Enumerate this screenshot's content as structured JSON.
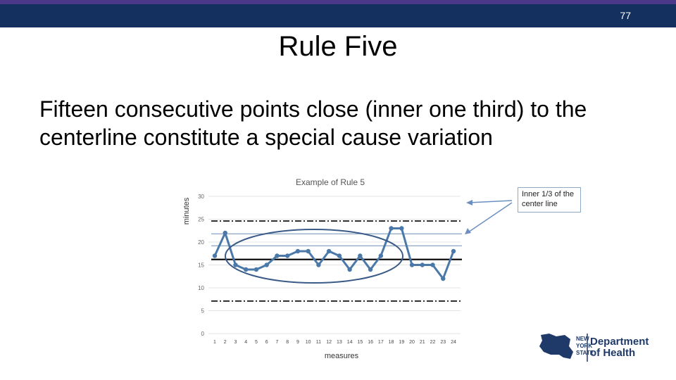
{
  "slide": {
    "number": "77",
    "title": "Rule Five",
    "body": "Fifteen consecutive points close (inner one third) to the centerline constitute a special cause variation"
  },
  "callout": {
    "text": "Inner 1/3 of the center line"
  },
  "logo": {
    "state_lines": [
      "NEW",
      "YORK",
      "STATE"
    ],
    "dept_line1": "Department",
    "dept_line2": "of Health"
  },
  "colors": {
    "series": "#4a78a8",
    "topbar": "#13305e",
    "accent": "#4a3787",
    "dept": "#1f3a68"
  },
  "chart_data": {
    "type": "line",
    "title": "Example of Rule 5",
    "xlabel": "measures",
    "ylabel": "minutes",
    "ylim": [
      0,
      30
    ],
    "yticks": [
      0,
      5,
      10,
      15,
      20,
      25,
      30
    ],
    "categories": [
      "1",
      "2",
      "3",
      "4",
      "5",
      "6",
      "7",
      "8",
      "9",
      "10",
      "11",
      "12",
      "13",
      "14",
      "15",
      "16",
      "17",
      "18",
      "19",
      "20",
      "21",
      "22",
      "23",
      "24"
    ],
    "series": [
      {
        "values": [
          17,
          22,
          15,
          14,
          14,
          15,
          17,
          17,
          18,
          18,
          15,
          18,
          17,
          14,
          17,
          14,
          17,
          23,
          23,
          15,
          15,
          15,
          12,
          18
        ]
      }
    ],
    "reference_lines": [
      {
        "value": 16.2,
        "style": "solid-thick"
      },
      {
        "value": 24.6,
        "style": "dash-dot"
      },
      {
        "value": 7.1,
        "style": "dash-dot"
      },
      {
        "value": 21.8,
        "style": "thin"
      },
      {
        "value": 19.2,
        "style": "thin"
      }
    ]
  }
}
